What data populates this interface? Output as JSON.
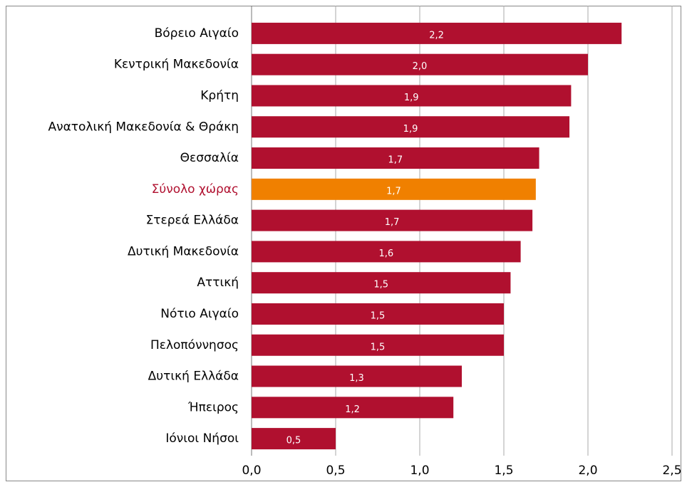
{
  "chart_data": {
    "type": "bar",
    "orientation": "horizontal",
    "categories": [
      "Βόρειο Αιγαίο",
      "Κεντρική Μακεδονία",
      "Κρήτη",
      "Ανατολική Μακεδονία & Θράκη",
      "Θεσσαλία",
      "Σύνολο χώρας",
      "Στερεά Ελλάδα",
      "Δυτική Μακεδονία",
      "Αττική",
      "Νότιο Αιγαίο",
      "Πελοπόννησος",
      "Δυτική Ελλάδα",
      "Ήπειρος",
      "Ιόνιοι Νήσοι"
    ],
    "values": [
      2.2,
      2.0,
      1.9,
      1.89,
      1.71,
      1.69,
      1.67,
      1.6,
      1.54,
      1.5,
      1.5,
      1.25,
      1.2,
      0.5
    ],
    "value_labels": [
      "2,2",
      "2,0",
      "1,9",
      "1,9",
      "1,7",
      "1,7",
      "1,7",
      "1,6",
      "1,5",
      "1,5",
      "1,5",
      "1,3",
      "1,2",
      "0,5"
    ],
    "colors": [
      "#b0102f",
      "#b0102f",
      "#b0102f",
      "#b0102f",
      "#b0102f",
      "#f08000",
      "#b0102f",
      "#b0102f",
      "#b0102f",
      "#b0102f",
      "#b0102f",
      "#b0102f",
      "#b0102f",
      "#b0102f"
    ],
    "label_colors": [
      "#000000",
      "#000000",
      "#000000",
      "#000000",
      "#000000",
      "#b0102f",
      "#000000",
      "#000000",
      "#000000",
      "#000000",
      "#000000",
      "#000000",
      "#000000",
      "#000000"
    ],
    "xlim": [
      0,
      2.5
    ],
    "xticks": [
      {
        "value": 0,
        "label": "0,0"
      },
      {
        "value": 0.5,
        "label": "0,5"
      },
      {
        "value": 1,
        "label": "1,0"
      },
      {
        "value": 1.5,
        "label": "1,5"
      },
      {
        "value": 2,
        "label": "2,0"
      },
      {
        "value": 2.5,
        "label": "2,5"
      }
    ],
    "grid": true
  }
}
